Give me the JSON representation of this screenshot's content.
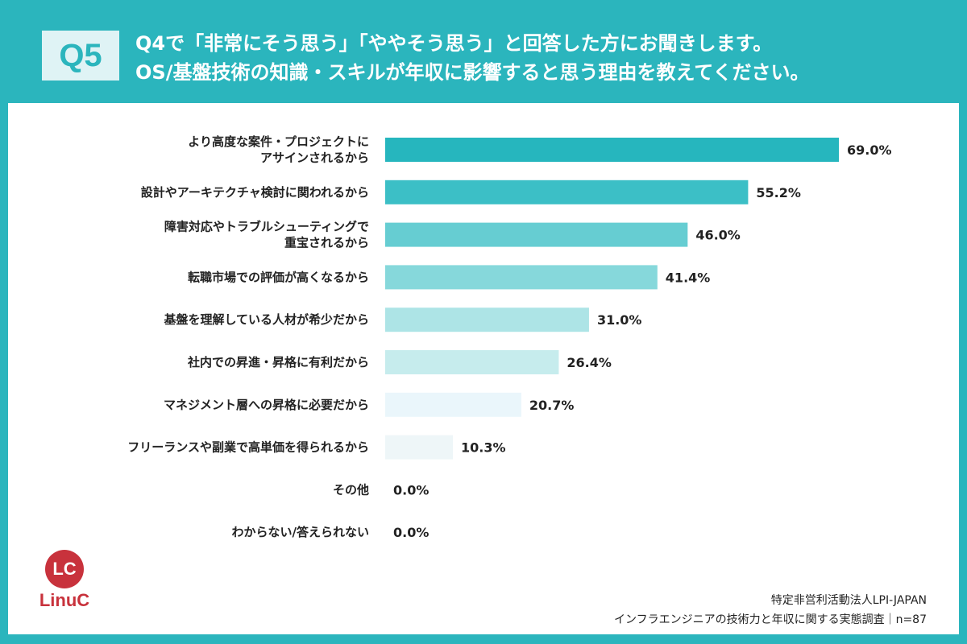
{
  "header": {
    "badge": "Q5",
    "title_line1": "Q4で「非常にそう思う」「ややそう思う」と回答した方にお聞きします。",
    "title_line2": "OS/基盤技術の知識・スキルが年収に影響すると思う理由を教えてください。"
  },
  "colors": {
    "background": "#2bb5bd",
    "panel": "#ffffff",
    "logo": "#c8323c",
    "bars": [
      "#26b6be",
      "#3cbfc6",
      "#66cdd2",
      "#86d8db",
      "#ade4e6",
      "#c6eced",
      "#eaf6fb",
      "#eef6f8",
      "#eef6f8",
      "#eef6f8"
    ]
  },
  "chart_data": {
    "type": "bar",
    "orientation": "horizontal",
    "title": "OS/基盤技術の知識・スキルが年収に影響すると思う理由",
    "xlabel": "",
    "ylabel": "",
    "xlim": [
      0,
      69
    ],
    "grid": false,
    "categories": [
      [
        "より高度な案件・プロジェクトに",
        "アサインされるから"
      ],
      [
        "設計やアーキテクチャ検討に関われるから"
      ],
      [
        "障害対応やトラブルシューティングで",
        "重宝されるから"
      ],
      [
        "転職市場での評価が高くなるから"
      ],
      [
        "基盤を理解している人材が希少だから"
      ],
      [
        "社内での昇進・昇格に有利だから"
      ],
      [
        "マネジメント層への昇格に必要だから"
      ],
      [
        "フリーランスや副業で高単価を得られるから"
      ],
      [
        "その他"
      ],
      [
        "わからない/答えられない"
      ]
    ],
    "values": [
      69.0,
      55.2,
      46.0,
      41.4,
      31.0,
      26.4,
      20.7,
      10.3,
      0.0,
      0.0
    ],
    "value_labels": [
      "69.0%",
      "55.2%",
      "46.0%",
      "41.4%",
      "31.0%",
      "26.4%",
      "20.7%",
      "10.3%",
      "0.0%",
      "0.0%"
    ]
  },
  "logo": {
    "mark": "LC",
    "name": "LinuC"
  },
  "footer": {
    "org": "特定非営利活動法人LPI-JAPAN",
    "survey": "インフラエンジニアの技術力と年収に関する実態調査｜n=87"
  }
}
